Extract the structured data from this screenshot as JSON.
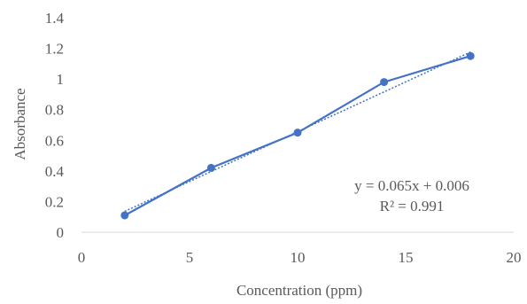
{
  "chart_data": {
    "type": "scatter",
    "xlabel": "Concentration (ppm)",
    "ylabel": "Absorbance",
    "xlim": [
      0,
      20
    ],
    "ylim": [
      0,
      1.4
    ],
    "xticks": [
      "0",
      "5",
      "10",
      "15",
      "20"
    ],
    "yticks": [
      "0",
      "0.2",
      "0.4",
      "0.6",
      "0.8",
      "1",
      "1.2",
      "1.4"
    ],
    "grid": false,
    "series": [
      {
        "x": [
          2,
          6,
          10,
          14,
          18
        ],
        "y": [
          0.11,
          0.42,
          0.65,
          0.98,
          1.15
        ],
        "color": "#4472c4",
        "line": "solid",
        "markers": true
      }
    ],
    "trendline": {
      "slope": 0.065,
      "intercept": 0.006,
      "x_range": [
        2,
        18
      ],
      "color": "#4472c4",
      "style": "dotted"
    },
    "annotations": {
      "equation": "y = 0.065x + 0.006",
      "r2": "R² = 0.991"
    }
  }
}
